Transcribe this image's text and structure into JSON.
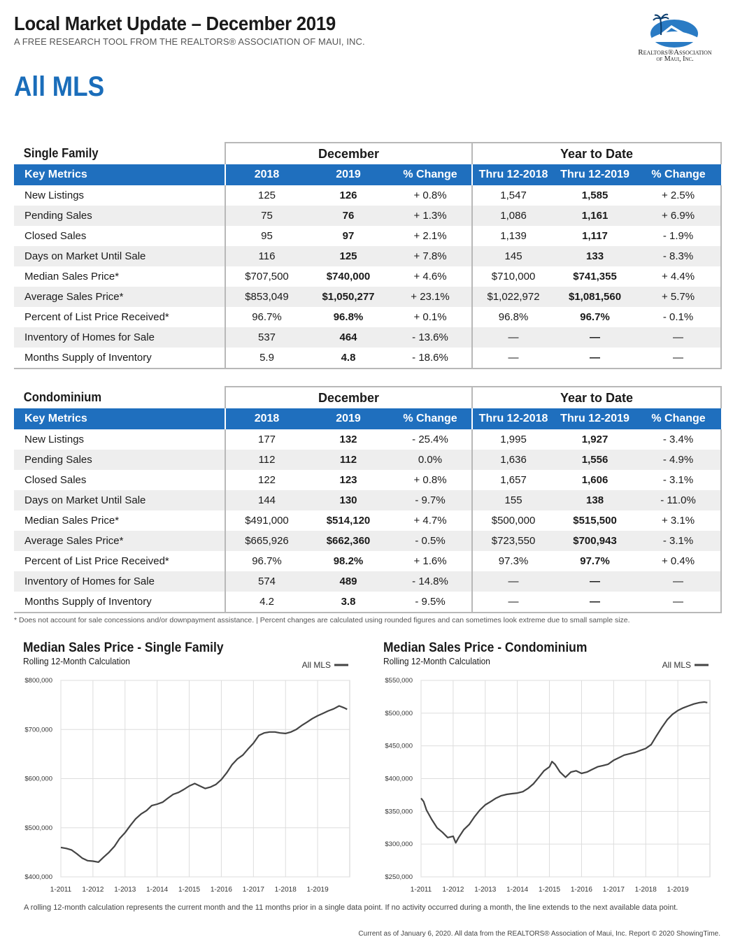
{
  "header": {
    "title": "Local Market Update – December 2019",
    "subtitle": "A FREE RESEARCH TOOL FROM THE REALTORS® ASSOCIATION OF MAUI, INC.",
    "logo_line1": "Realtors®Association",
    "logo_line2": "of Maui, Inc."
  },
  "region": "All MLS",
  "tables": [
    {
      "name": "Single Family",
      "group_december": "December",
      "group_ytd": "Year to Date",
      "columns": [
        "Key Metrics",
        "2018",
        "2019",
        "% Change",
        "Thru 12-2018",
        "Thru 12-2019",
        "% Change"
      ],
      "rows": [
        {
          "label": "New Listings",
          "d2018": "125",
          "d2019": "126",
          "dchg": "+ 0.8%",
          "y2018": "1,547",
          "y2019": "1,585",
          "ychg": "+ 2.5%"
        },
        {
          "label": "Pending Sales",
          "d2018": "75",
          "d2019": "76",
          "dchg": "+ 1.3%",
          "y2018": "1,086",
          "y2019": "1,161",
          "ychg": "+ 6.9%"
        },
        {
          "label": "Closed Sales",
          "d2018": "95",
          "d2019": "97",
          "dchg": "+ 2.1%",
          "y2018": "1,139",
          "y2019": "1,117",
          "ychg": "- 1.9%"
        },
        {
          "label": "Days on Market Until Sale",
          "d2018": "116",
          "d2019": "125",
          "dchg": "+ 7.8%",
          "y2018": "145",
          "y2019": "133",
          "ychg": "- 8.3%"
        },
        {
          "label": "Median Sales Price*",
          "d2018": "$707,500",
          "d2019": "$740,000",
          "dchg": "+ 4.6%",
          "y2018": "$710,000",
          "y2019": "$741,355",
          "ychg": "+ 4.4%"
        },
        {
          "label": "Average Sales Price*",
          "d2018": "$853,049",
          "d2019": "$1,050,277",
          "dchg": "+ 23.1%",
          "y2018": "$1,022,972",
          "y2019": "$1,081,560",
          "ychg": "+ 5.7%"
        },
        {
          "label": "Percent of List Price Received*",
          "d2018": "96.7%",
          "d2019": "96.8%",
          "dchg": "+ 0.1%",
          "y2018": "96.8%",
          "y2019": "96.7%",
          "ychg": "- 0.1%"
        },
        {
          "label": "Inventory of Homes for Sale",
          "d2018": "537",
          "d2019": "464",
          "dchg": "- 13.6%",
          "y2018": "—",
          "y2019": "—",
          "ychg": "—"
        },
        {
          "label": "Months Supply of Inventory",
          "d2018": "5.9",
          "d2019": "4.8",
          "dchg": "- 18.6%",
          "y2018": "—",
          "y2019": "—",
          "ychg": "—"
        }
      ]
    },
    {
      "name": "Condominium",
      "group_december": "December",
      "group_ytd": "Year to Date",
      "columns": [
        "Key Metrics",
        "2018",
        "2019",
        "% Change",
        "Thru 12-2018",
        "Thru 12-2019",
        "% Change"
      ],
      "rows": [
        {
          "label": "New Listings",
          "d2018": "177",
          "d2019": "132",
          "dchg": "- 25.4%",
          "y2018": "1,995",
          "y2019": "1,927",
          "ychg": "- 3.4%"
        },
        {
          "label": "Pending Sales",
          "d2018": "112",
          "d2019": "112",
          "dchg": "0.0%",
          "y2018": "1,636",
          "y2019": "1,556",
          "ychg": "- 4.9%"
        },
        {
          "label": "Closed Sales",
          "d2018": "122",
          "d2019": "123",
          "dchg": "+ 0.8%",
          "y2018": "1,657",
          "y2019": "1,606",
          "ychg": "- 3.1%"
        },
        {
          "label": "Days on Market Until Sale",
          "d2018": "144",
          "d2019": "130",
          "dchg": "- 9.7%",
          "y2018": "155",
          "y2019": "138",
          "ychg": "- 11.0%"
        },
        {
          "label": "Median Sales Price*",
          "d2018": "$491,000",
          "d2019": "$514,120",
          "dchg": "+ 4.7%",
          "y2018": "$500,000",
          "y2019": "$515,500",
          "ychg": "+ 3.1%"
        },
        {
          "label": "Average Sales Price*",
          "d2018": "$665,926",
          "d2019": "$662,360",
          "dchg": "- 0.5%",
          "y2018": "$723,550",
          "y2019": "$700,943",
          "ychg": "- 3.1%"
        },
        {
          "label": "Percent of List Price Received*",
          "d2018": "96.7%",
          "d2019": "98.2%",
          "dchg": "+ 1.6%",
          "y2018": "97.3%",
          "y2019": "97.7%",
          "ychg": "+ 0.4%"
        },
        {
          "label": "Inventory of Homes for Sale",
          "d2018": "574",
          "d2019": "489",
          "dchg": "- 14.8%",
          "y2018": "—",
          "y2019": "—",
          "ychg": "—"
        },
        {
          "label": "Months Supply of Inventory",
          "d2018": "4.2",
          "d2019": "3.8",
          "dchg": "- 9.5%",
          "y2018": "—",
          "y2019": "—",
          "ychg": "—"
        }
      ]
    }
  ],
  "footnote": "* Does not account for sale concessions and/or downpayment assistance. | Percent changes are calculated using rounded figures and can sometimes look extreme due to small sample size.",
  "chart_data": [
    {
      "type": "line",
      "title": "Median Sales Price - Single Family",
      "subtitle": "Rolling 12-Month Calculation",
      "legend": "All MLS",
      "legend_position": "top-right",
      "grid": true,
      "ylim": [
        400000,
        800000
      ],
      "yticks": [
        400000,
        500000,
        600000,
        700000,
        800000
      ],
      "ytick_labels": [
        "$400,000",
        "$500,000",
        "$600,000",
        "$700,000",
        "$800,000"
      ],
      "xlim": [
        2011.0,
        2020.0
      ],
      "xticks": [
        2011,
        2012,
        2013,
        2014,
        2015,
        2016,
        2017,
        2018,
        2019
      ],
      "xtick_labels": [
        "1-2011",
        "1-2012",
        "1-2013",
        "1-2014",
        "1-2015",
        "1-2016",
        "1-2017",
        "1-2018",
        "1-2019"
      ],
      "line_color": "#444444",
      "series": [
        {
          "name": "All MLS",
          "x": [
            2011.0,
            2011.17,
            2011.33,
            2011.5,
            2011.67,
            2011.83,
            2012.0,
            2012.17,
            2012.33,
            2012.5,
            2012.67,
            2012.83,
            2013.0,
            2013.17,
            2013.33,
            2013.5,
            2013.67,
            2013.83,
            2014.0,
            2014.17,
            2014.33,
            2014.5,
            2014.67,
            2014.83,
            2015.0,
            2015.17,
            2015.33,
            2015.5,
            2015.67,
            2015.83,
            2016.0,
            2016.17,
            2016.33,
            2016.5,
            2016.67,
            2016.83,
            2017.0,
            2017.17,
            2017.33,
            2017.5,
            2017.67,
            2017.83,
            2018.0,
            2018.17,
            2018.33,
            2018.5,
            2018.67,
            2018.83,
            2019.0,
            2019.17,
            2019.33,
            2019.5,
            2019.67,
            2019.83,
            2019.92
          ],
          "y": [
            460000,
            458000,
            455000,
            447000,
            438000,
            433000,
            432000,
            430000,
            440000,
            450000,
            462000,
            478000,
            490000,
            505000,
            518000,
            528000,
            535000,
            545000,
            548000,
            552000,
            560000,
            568000,
            572000,
            578000,
            585000,
            590000,
            585000,
            580000,
            583000,
            588000,
            598000,
            612000,
            628000,
            640000,
            648000,
            660000,
            672000,
            688000,
            693000,
            695000,
            695000,
            693000,
            692000,
            695000,
            700000,
            708000,
            715000,
            722000,
            728000,
            733000,
            738000,
            742000,
            748000,
            744000,
            741000
          ]
        }
      ]
    },
    {
      "type": "line",
      "title": "Median Sales Price - Condominium",
      "subtitle": "Rolling 12-Month Calculation",
      "legend": "All MLS",
      "legend_position": "top-right",
      "grid": true,
      "ylim": [
        250000,
        550000
      ],
      "yticks": [
        250000,
        300000,
        350000,
        400000,
        450000,
        500000,
        550000
      ],
      "ytick_labels": [
        "$250,000",
        "$300,000",
        "$350,000",
        "$400,000",
        "$450,000",
        "$500,000",
        "$550,000"
      ],
      "xlim": [
        2011.0,
        2020.0
      ],
      "xticks": [
        2011,
        2012,
        2013,
        2014,
        2015,
        2016,
        2017,
        2018,
        2019
      ],
      "xtick_labels": [
        "1-2011",
        "1-2012",
        "1-2013",
        "1-2014",
        "1-2015",
        "1-2016",
        "1-2017",
        "1-2018",
        "1-2019"
      ],
      "line_color": "#444444",
      "series": [
        {
          "name": "All MLS",
          "x": [
            2011.0,
            2011.08,
            2011.17,
            2011.33,
            2011.5,
            2011.67,
            2011.83,
            2012.0,
            2012.08,
            2012.17,
            2012.33,
            2012.5,
            2012.67,
            2012.83,
            2013.0,
            2013.17,
            2013.33,
            2013.5,
            2013.67,
            2013.83,
            2014.0,
            2014.17,
            2014.33,
            2014.5,
            2014.67,
            2014.83,
            2015.0,
            2015.08,
            2015.17,
            2015.33,
            2015.5,
            2015.67,
            2015.83,
            2016.0,
            2016.17,
            2016.33,
            2016.5,
            2016.67,
            2016.83,
            2017.0,
            2017.17,
            2017.33,
            2017.5,
            2017.67,
            2017.83,
            2018.0,
            2018.17,
            2018.33,
            2018.5,
            2018.67,
            2018.83,
            2019.0,
            2019.17,
            2019.33,
            2019.5,
            2019.67,
            2019.83,
            2019.92
          ],
          "y": [
            370000,
            365000,
            352000,
            338000,
            325000,
            318000,
            310000,
            312000,
            302000,
            310000,
            322000,
            330000,
            342000,
            352000,
            360000,
            365000,
            370000,
            374000,
            376000,
            377000,
            378000,
            380000,
            385000,
            392000,
            402000,
            412000,
            418000,
            426000,
            422000,
            410000,
            402000,
            410000,
            412000,
            408000,
            410000,
            414000,
            418000,
            420000,
            422000,
            428000,
            432000,
            436000,
            438000,
            440000,
            443000,
            446000,
            452000,
            465000,
            478000,
            490000,
            498000,
            504000,
            508000,
            511000,
            514000,
            516000,
            517000,
            516000
          ]
        }
      ]
    }
  ],
  "chart_note": "A rolling 12-month calculation represents the current month and the 11 months prior in a single data point. If no activity occurred during a month, the line extends to the next available data point.",
  "current_as_of": "Current as of January 6, 2020. All data from the REALTORS® Association of Maui, Inc. Report © 2020 ShowingTime."
}
